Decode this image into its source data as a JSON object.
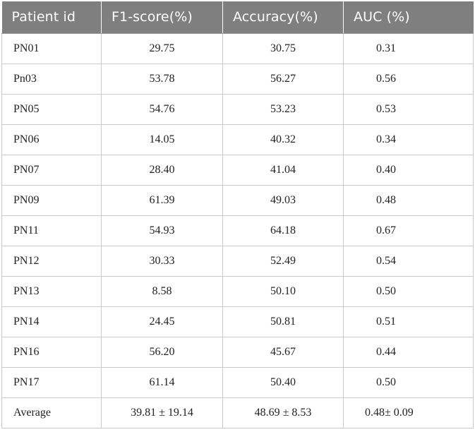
{
  "table": {
    "headers": [
      "Patient id",
      "F1-score(%)",
      "Accuracy(%)",
      "AUC (%)"
    ],
    "rows": [
      [
        "PN01",
        "29.75",
        "30.75",
        "0.31"
      ],
      [
        "Pn03",
        "53.78",
        "56.27",
        "0.56"
      ],
      [
        "PN05",
        "54.76",
        "53.23",
        "0.53"
      ],
      [
        "PN06",
        "14.05",
        "40.32",
        "0.34"
      ],
      [
        "PN07",
        "28.40",
        "41.04",
        "0.40"
      ],
      [
        "PN09",
        "61.39",
        "49.03",
        "0.48"
      ],
      [
        "PN11",
        "54.93",
        "64.18",
        "0.67"
      ],
      [
        "PN12",
        "30.33",
        "52.49",
        "0.54"
      ],
      [
        "PN13",
        "8.58",
        "50.10",
        "0.50"
      ],
      [
        "PN14",
        "24.45",
        "50.81",
        "0.51"
      ],
      [
        "PN16",
        "56.20",
        "45.67",
        "0.44"
      ],
      [
        "PN17",
        "61.14",
        "50.40",
        "0.50"
      ]
    ],
    "average": [
      "Average",
      "39.81 ± 19.14",
      "48.69 ± 8.53",
      "0.48± 0.09"
    ]
  },
  "colors": {
    "header_background": "#7f7f7f",
    "header_text": "#ffffff",
    "grid_lines": "#c9c9c9",
    "body_text": "#222222"
  }
}
